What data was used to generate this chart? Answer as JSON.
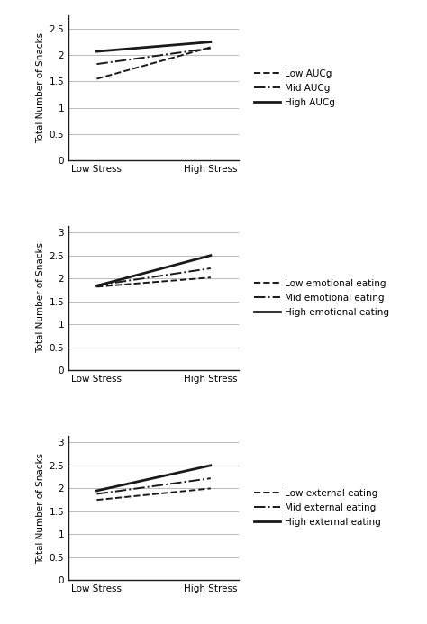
{
  "panel1": {
    "lines": [
      {
        "label": "Low AUCg",
        "style": "--",
        "lw": 1.4,
        "low": 1.55,
        "high": 2.15
      },
      {
        "label": "Mid AUCg",
        "style": "-.",
        "lw": 1.4,
        "low": 1.83,
        "high": 2.13
      },
      {
        "label": "High AUCg",
        "style": "-",
        "lw": 2.0,
        "low": 2.07,
        "high": 2.25
      }
    ],
    "ylabel": "Total Number of Snacks",
    "ylim": [
      0,
      2.75
    ],
    "yticks": [
      0,
      0.5,
      1,
      1.5,
      2,
      2.5
    ]
  },
  "panel2": {
    "lines": [
      {
        "label": "Low emotional eating",
        "style": "--",
        "lw": 1.4,
        "low": 1.82,
        "high": 2.02
      },
      {
        "label": "Mid emotional eating",
        "style": "-.",
        "lw": 1.4,
        "low": 1.85,
        "high": 2.22
      },
      {
        "label": "High emotional eating",
        "style": "-",
        "lw": 2.0,
        "low": 1.84,
        "high": 2.5
      }
    ],
    "ylabel": "Total Number of Snacks",
    "ylim": [
      0,
      3.15
    ],
    "yticks": [
      0,
      0.5,
      1,
      1.5,
      2,
      2.5,
      3
    ]
  },
  "panel3": {
    "lines": [
      {
        "label": "Low external eating",
        "style": "--",
        "lw": 1.4,
        "low": 1.75,
        "high": 2.0
      },
      {
        "label": "Mid external eating",
        "style": "-.",
        "lw": 1.4,
        "low": 1.88,
        "high": 2.22
      },
      {
        "label": "High external eating",
        "style": "-",
        "lw": 2.0,
        "low": 1.95,
        "high": 2.5
      }
    ],
    "ylabel": "Total Number of Snacks",
    "ylim": [
      0,
      3.15
    ],
    "yticks": [
      0,
      0.5,
      1,
      1.5,
      2,
      2.5,
      3
    ]
  },
  "x_labels": [
    "Low Stress",
    "High Stress"
  ],
  "line_color": "#1a1a1a",
  "bg_color": "#ffffff",
  "grid_color": "#bbbbbb",
  "label_fontsize": 7.5,
  "tick_fontsize": 7.5,
  "legend_fontsize": 7.5
}
